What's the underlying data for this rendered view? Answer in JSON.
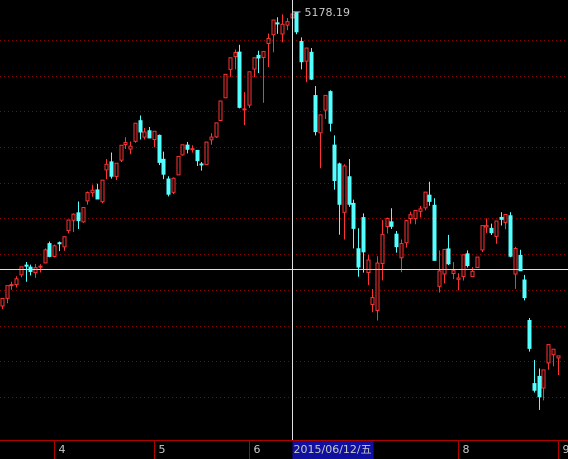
{
  "chart_data": {
    "type": "candlestick",
    "up_color": "#ff3232",
    "down_color": "#54ffff",
    "grid_color": "#8b0000",
    "ylim": [
      2674,
      5248
    ],
    "ygrid": [
      5014,
      4803,
      4599,
      4388,
      4178,
      3973,
      3762,
      3552,
      3341,
      3137,
      2926
    ],
    "xticks": [
      {
        "value": 12,
        "label": "4"
      },
      {
        "value": 33,
        "label": "5"
      },
      {
        "value": 53,
        "label": "6"
      },
      {
        "value": 97,
        "label": "8"
      },
      {
        "value": 118,
        "label": "9"
      }
    ],
    "open": [
      3391,
      3458,
      3503,
      3582,
      3583,
      3640,
      3697,
      3685,
      3653,
      3686,
      3710,
      3823,
      3748,
      3828,
      3804,
      3899,
      3960,
      4003,
      3950,
      4073,
      4121,
      4137,
      4068,
      4254,
      4301,
      4216,
      4311,
      4403,
      4376,
      4421,
      4542,
      4446,
      4483,
      4432,
      4456,
      4316,
      4201,
      4123,
      4225,
      4342,
      4399,
      4373,
      4368,
      4289,
      4285,
      4430,
      4447,
      4543,
      4676,
      4842,
      4917,
      4943,
      4606,
      4633,
      4844,
      4924,
      4912,
      4994,
      5045,
      5114,
      5049,
      5101,
      5143,
      5174,
      5005,
      4890,
      4942,
      4689,
      4471,
      4604,
      4712,
      4399,
      4289,
      4006,
      4214,
      4058,
      3793,
      3975,
      3654,
      3467,
      3432,
      3707,
      3923,
      3950,
      3878,
      3740,
      3828,
      3970,
      3969,
      4012,
      4032,
      4106,
      4047,
      3573,
      3645,
      3792,
      3648,
      3614,
      3630,
      3763,
      3630,
      3683,
      3786,
      3920,
      3912,
      3865,
      3976,
      3947,
      3986,
      3645,
      3754,
      3610,
      3373,
      3004,
      3046,
      2978,
      3125,
      3173,
      3154
    ],
    "high": [
      3449,
      3504,
      3577,
      3600,
      3632,
      3688,
      3715,
      3700,
      3704,
      3702,
      3795,
      3835,
      3817,
      3835,
      3866,
      3961,
      4000,
      4069,
      4035,
      4128,
      4168,
      4173,
      4194,
      4318,
      4356,
      4293,
      4398,
      4445,
      4420,
      4529,
      4572,
      4499,
      4505,
      4480,
      4461,
      4361,
      4217,
      4210,
      4333,
      4401,
      4418,
      4398,
      4370,
      4300,
      4417,
      4469,
      4530,
      4658,
      4814,
      4911,
      4958,
      4986,
      4709,
      4829,
      4911,
      4951,
      4947,
      5052,
      5131,
      5147,
      5164,
      5143,
      5178.19,
      5176,
      5029,
      4968,
      4967,
      4744,
      4577,
      4691,
      4720,
      4456,
      4297,
      4287,
      4318,
      4080,
      3913,
      4000,
      3757,
      3557,
      3749,
      3960,
      3975,
      4030,
      3897,
      3847,
      3962,
      4010,
      4017,
      4043,
      4125,
      4185,
      4088,
      3783,
      3790,
      3874,
      3715,
      3650,
      3757,
      3783,
      3685,
      3745,
      3928,
      3970,
      3940,
      3955,
      4006,
      3994,
      4006,
      3804,
      3787,
      3640,
      3388,
      3142,
      3092,
      3086,
      3233,
      3207,
      3160
    ],
    "low": [
      3385,
      3440,
      3474,
      3553,
      3566,
      3626,
      3600,
      3636,
      3623,
      3654,
      3707,
      3743,
      3742,
      3779,
      3781,
      3883,
      3890,
      3908,
      3944,
      4051,
      4097,
      4084,
      4059,
      4200,
      4203,
      4195,
      4300,
      4376,
      4346,
      4413,
      4432,
      4432,
      4441,
      4386,
      4282,
      4200,
      4099,
      4112,
      4225,
      4337,
      4351,
      4355,
      4277,
      4250,
      4284,
      4401,
      4441,
      4543,
      4676,
      4799,
      4842,
      4614,
      4516,
      4616,
      4797,
      4821,
      4647,
      4856,
      4942,
      5050,
      5001,
      5072,
      5103,
      5048,
      4842,
      4767,
      4780,
      4456,
      4264,
      4552,
      4479,
      4139,
      3875,
      3847,
      4038,
      3795,
      3629,
      3653,
      3580,
      3421,
      3373,
      3608,
      3882,
      3908,
      3770,
      3655,
      3800,
      3939,
      3936,
      3976,
      4018,
      4044,
      3723,
      3537,
      3590,
      3697,
      3615,
      3549,
      3607,
      3683,
      3628,
      3683,
      3773,
      3886,
      3873,
      3822,
      3929,
      3907,
      3743,
      3558,
      3663,
      3491,
      3191,
      2952,
      2850,
      2906,
      3085,
      3105,
      3054
    ],
    "close": [
      3449,
      3502,
      3577,
      3583,
      3617,
      3687,
      3691,
      3660,
      3682,
      3691,
      3786,
      3748,
      3810,
      3825,
      3863,
      3961,
      3995,
      3957,
      4034,
      4121,
      4135,
      4084,
      4194,
      4287,
      4217,
      4293,
      4398,
      4414,
      4393,
      4527,
      4476,
      4476,
      4441,
      4480,
      4298,
      4229,
      4112,
      4205,
      4333,
      4401,
      4375,
      4378,
      4308,
      4283,
      4417,
      4446,
      4529,
      4657,
      4813,
      4910,
      4941,
      4620,
      4611,
      4828,
      4910,
      4909,
      4947,
      5023,
      5131,
      5113,
      5106,
      5121,
      5166,
      5062,
      4887,
      4967,
      4785,
      4478,
      4576,
      4690,
      4527,
      4192,
      4053,
      4277,
      4053,
      3912,
      3686,
      3775,
      3727,
      3507,
      3709,
      3877,
      3970,
      3924,
      3805,
      3823,
      3957,
      3992,
      4017,
      4026,
      4124,
      4070,
      3725,
      3663,
      3789,
      3705,
      3664,
      3622,
      3757,
      3695,
      3661,
      3744,
      3928,
      3928,
      3887,
      3955,
      3965,
      3993,
      3749,
      3794,
      3664,
      3507,
      3210,
      2965,
      2927,
      3084,
      3232,
      3205,
      3166
    ],
    "annotation": {
      "text": "5178.19",
      "x": 62,
      "y": 5178.19
    },
    "crosshair": {
      "x": 62,
      "y": 3674,
      "x_label": "2015/06/12/五"
    }
  }
}
